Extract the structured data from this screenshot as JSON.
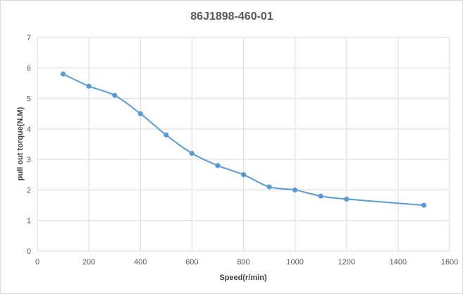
{
  "chart_data": {
    "type": "line",
    "title": "86J1898-460-01",
    "xlabel": "Speed(r/min)",
    "ylabel": "pull out torque(N.M)",
    "xlim": [
      0,
      1600
    ],
    "ylim": [
      0,
      7
    ],
    "xticks": [
      0,
      200,
      400,
      600,
      800,
      1000,
      1200,
      1400,
      1600
    ],
    "yticks": [
      0,
      1,
      2,
      3,
      4,
      5,
      6,
      7
    ],
    "grid": true,
    "legend": "none",
    "series": [
      {
        "color": "#5b9bd5",
        "x": [
          100,
          200,
          300,
          400,
          500,
          600,
          700,
          800,
          900,
          1000,
          1100,
          1200,
          1500
        ],
        "y": [
          5.8,
          5.4,
          5.1,
          4.5,
          3.8,
          3.2,
          2.8,
          2.5,
          2.1,
          2.0,
          1.8,
          1.7,
          1.5
        ]
      }
    ]
  }
}
